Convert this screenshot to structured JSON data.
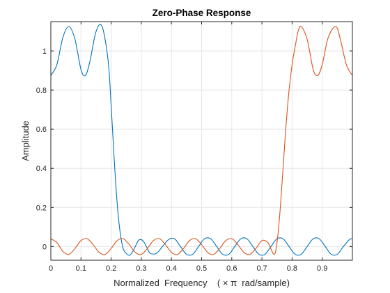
{
  "chart_data": {
    "type": "line",
    "title": "Zero-Phase Response",
    "xlabel": "Normalized  Frequency    ( × π  rad/sample)",
    "ylabel": "Amplitude",
    "xlim": [
      0,
      1
    ],
    "ylim": [
      -0.07,
      1.15
    ],
    "x_ticks": [
      0,
      0.1,
      0.2,
      0.3,
      0.4,
      0.5,
      0.6,
      0.7,
      0.8,
      0.9
    ],
    "x_tick_labels": [
      "0",
      "0.1",
      "0.2",
      "0.3",
      "0.4",
      "0.5",
      "0.6",
      "0.7",
      "0.8",
      "0.9"
    ],
    "y_ticks": [
      0,
      0.2,
      0.4,
      0.6,
      0.8,
      1
    ],
    "y_tick_labels": [
      "0",
      "0.2",
      "0.4",
      "0.6",
      "0.8",
      "1"
    ],
    "grid": true,
    "series": [
      {
        "color": "#0072BD",
        "x": [
          0,
          0.02,
          0.04,
          0.06,
          0.08,
          0.1,
          0.115,
          0.13,
          0.15,
          0.17,
          0.19,
          0.2,
          0.21,
          0.22,
          0.23,
          0.24,
          0.25,
          0.26,
          0.27,
          0.28,
          0.29,
          0.3,
          0.31,
          0.32,
          0.33,
          0.35,
          0.37,
          0.39,
          0.41,
          0.43,
          0.45,
          0.47,
          0.49,
          0.51,
          0.53,
          0.55,
          0.57,
          0.59,
          0.61,
          0.63,
          0.65,
          0.67,
          0.69,
          0.71,
          0.73,
          0.75,
          0.77,
          0.79,
          0.81,
          0.83,
          0.85,
          0.87,
          0.89,
          0.91,
          0.93,
          0.95,
          0.97,
          0.99,
          1.0
        ],
        "y": [
          0.875,
          0.93,
          1.07,
          1.125,
          1.06,
          0.905,
          0.875,
          0.95,
          1.1,
          1.125,
          0.95,
          0.72,
          0.45,
          0.22,
          0.07,
          -0.01,
          -0.035,
          -0.045,
          -0.03,
          0.0,
          0.03,
          0.035,
          0.02,
          -0.01,
          -0.035,
          -0.035,
          0.0,
          0.035,
          0.04,
          0.0,
          -0.04,
          -0.04,
          0.0,
          0.04,
          0.04,
          0.0,
          -0.04,
          -0.04,
          0.0,
          0.04,
          0.04,
          0.0,
          -0.04,
          -0.04,
          0.0,
          0.04,
          0.04,
          0.0,
          -0.04,
          -0.04,
          0.0,
          0.04,
          0.04,
          0.0,
          -0.04,
          -0.04,
          0.0,
          0.035,
          0.04
        ]
      },
      {
        "color": "#D95319",
        "x": [
          0,
          0.02,
          0.04,
          0.06,
          0.08,
          0.1,
          0.12,
          0.14,
          0.16,
          0.18,
          0.2,
          0.22,
          0.24,
          0.26,
          0.28,
          0.3,
          0.32,
          0.34,
          0.36,
          0.38,
          0.4,
          0.42,
          0.44,
          0.46,
          0.48,
          0.5,
          0.52,
          0.54,
          0.56,
          0.58,
          0.6,
          0.62,
          0.64,
          0.66,
          0.68,
          0.7,
          0.72,
          0.74,
          0.75,
          0.76,
          0.77,
          0.78,
          0.79,
          0.8,
          0.81,
          0.82,
          0.83,
          0.85,
          0.87,
          0.885,
          0.9,
          0.92,
          0.945,
          0.96,
          0.98,
          1.0
        ],
        "y": [
          0.04,
          0.02,
          -0.025,
          -0.04,
          -0.01,
          0.03,
          0.04,
          0.01,
          -0.03,
          -0.04,
          -0.01,
          0.03,
          0.04,
          0.01,
          -0.03,
          -0.04,
          -0.01,
          0.03,
          0.04,
          0.01,
          -0.03,
          -0.04,
          -0.01,
          0.03,
          0.04,
          0.01,
          -0.03,
          -0.04,
          -0.01,
          0.03,
          0.04,
          0.01,
          -0.03,
          -0.04,
          -0.01,
          0.03,
          0.02,
          -0.04,
          0.02,
          0.18,
          0.4,
          0.62,
          0.8,
          0.93,
          1.02,
          1.1,
          1.125,
          1.06,
          0.905,
          0.875,
          0.93,
          1.07,
          1.125,
          1.06,
          0.93,
          0.875
        ]
      }
    ]
  }
}
